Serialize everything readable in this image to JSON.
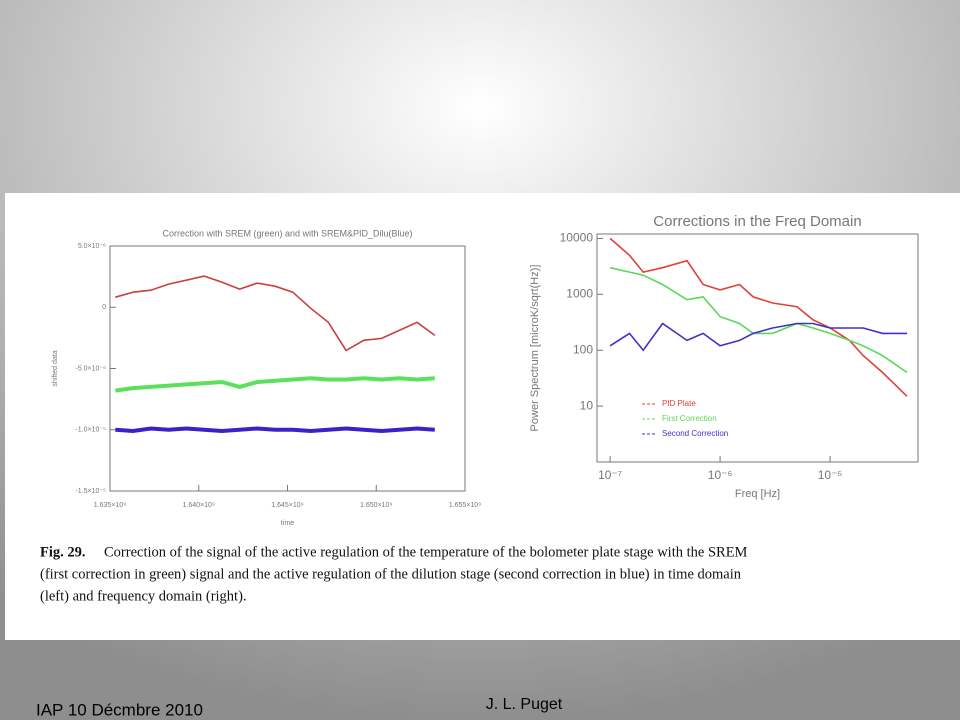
{
  "chart_data": [
    {
      "type": "line",
      "title": "Correction with SREM (green) and with SREM&PID_Dilu(Blue)",
      "xlabel": "time",
      "ylabel": "shifted data",
      "x": [
        1635300000,
        1636300000,
        1637300000,
        1638300000,
        1639300000,
        1640300000,
        1641300000,
        1642300000,
        1643300000,
        1644300000,
        1645300000,
        1646300000,
        1647300000,
        1648300000,
        1649300000,
        1650300000,
        1651300000,
        1652300000,
        1653300000
      ],
      "series": [
        {
          "name": "PID Plate",
          "color": "#c9403c",
          "values": [
            8.2e-07,
            1.23e-06,
            1.39e-06,
            1.89e-06,
            2.21e-06,
            2.54e-06,
            2.05e-06,
            1.48e-06,
            1.97e-06,
            1.72e-06,
            1.23e-06,
            -8e-08,
            -1.23e-06,
            -3.52e-06,
            -2.7e-06,
            -2.54e-06,
            -1.89e-06,
            -1.23e-06,
            -2.3e-06
          ]
        },
        {
          "name": "First Correction",
          "color": "#5be05b",
          "values": [
            -6.8e-06,
            -6.6e-06,
            -6.5e-06,
            -6.4e-06,
            -6.3e-06,
            -6.2e-06,
            -6.1e-06,
            -6.5e-06,
            -6.1e-06,
            -6e-06,
            -5.9e-06,
            -5.8e-06,
            -5.9e-06,
            -5.9e-06,
            -5.8e-06,
            -5.9e-06,
            -5.8e-06,
            -5.9e-06,
            -5.8e-06
          ]
        },
        {
          "name": "Second Correction",
          "color": "#3a22c8",
          "values": [
            -1e-05,
            -1.01e-05,
            -9.9e-06,
            -1e-05,
            -9.9e-06,
            -1e-05,
            -1.01e-05,
            -1e-05,
            -9.9e-06,
            -1e-05,
            -1e-05,
            -1.01e-05,
            -1e-05,
            -9.9e-06,
            -1e-05,
            -1.01e-05,
            -1e-05,
            -9.9e-06,
            -1e-05
          ]
        }
      ],
      "xlim": [
        1635000000,
        1655000000
      ],
      "xticks": [
        {
          "value": 1635000000,
          "label": "1.635×10⁹"
        },
        {
          "value": 1640000000,
          "label": "1.640×10⁹"
        },
        {
          "value": 1645000000,
          "label": "1.645×10⁹"
        },
        {
          "value": 1650000000,
          "label": "1.650×10⁹"
        },
        {
          "value": 1655000000,
          "label": "1.655×10⁹"
        }
      ],
      "ylim": [
        -1.5e-05,
        5e-06
      ],
      "yticks": [
        {
          "value": 5e-06,
          "label": "5.0×10⁻⁶"
        },
        0,
        {
          "value": -5e-06,
          "label": "-5.0×10⁻⁶"
        },
        {
          "value": -1e-05,
          "label": "-1.0×10⁻⁵"
        },
        {
          "value": -1.5e-05,
          "label": "-1.5×10⁻⁵"
        }
      ]
    },
    {
      "type": "line",
      "title": "Corrections in the Freq Domain",
      "xlabel": "Freq [Hz]",
      "ylabel": "Power Spectrum [microK/sqrt(Hz)]",
      "xscale": "log",
      "yscale": "log",
      "legend": "lower left",
      "x": [
        1e-07,
        1.5e-07,
        2e-07,
        3e-07,
        5e-07,
        7e-07,
        1e-06,
        1.5e-06,
        2e-06,
        3e-06,
        5e-06,
        7e-06,
        1e-05,
        1.5e-05,
        2e-05,
        3e-05,
        5e-05
      ],
      "series": [
        {
          "name": "PID Plate",
          "color": "#e04038",
          "values": [
            10000,
            5000,
            2500,
            3000,
            4000,
            1500,
            1200,
            1500,
            900,
            700,
            600,
            350,
            250,
            150,
            80,
            40,
            15
          ]
        },
        {
          "name": "First Correction",
          "color": "#5ad85a",
          "values": [
            3000,
            2500,
            2200,
            1500,
            800,
            900,
            400,
            300,
            200,
            200,
            300,
            250,
            200,
            150,
            120,
            80,
            40
          ]
        },
        {
          "name": "Second Correction",
          "color": "#4030c8",
          "values": [
            120,
            200,
            100,
            300,
            150,
            200,
            120,
            150,
            200,
            250,
            300,
            300,
            250,
            250,
            250,
            200,
            200
          ]
        }
      ],
      "xlim": [
        7.6e-08,
        6.3e-05
      ],
      "xticks": [
        {
          "value": 1e-07,
          "label": "10⁻⁷"
        },
        {
          "value": 1e-06,
          "label": "10⁻⁶"
        },
        {
          "value": 1e-05,
          "label": "10⁻⁵"
        }
      ],
      "ylim": [
        1,
        12000
      ],
      "yticks": [
        10,
        100,
        1000,
        10000
      ]
    }
  ],
  "caption": {
    "label": "Fig. 29.",
    "lines": [
      "Correction of the signal of the active regulation of the temperature of the bolometer plate stage with the SREM",
      "(first correction in green) signal and the active regulation of the dilution stage (second correction in blue) in time domain",
      "(left) and frequency domain (right)."
    ]
  },
  "footer": {
    "left": "IAP 10 Décmbre 2010",
    "center": "J. L. Puget"
  }
}
